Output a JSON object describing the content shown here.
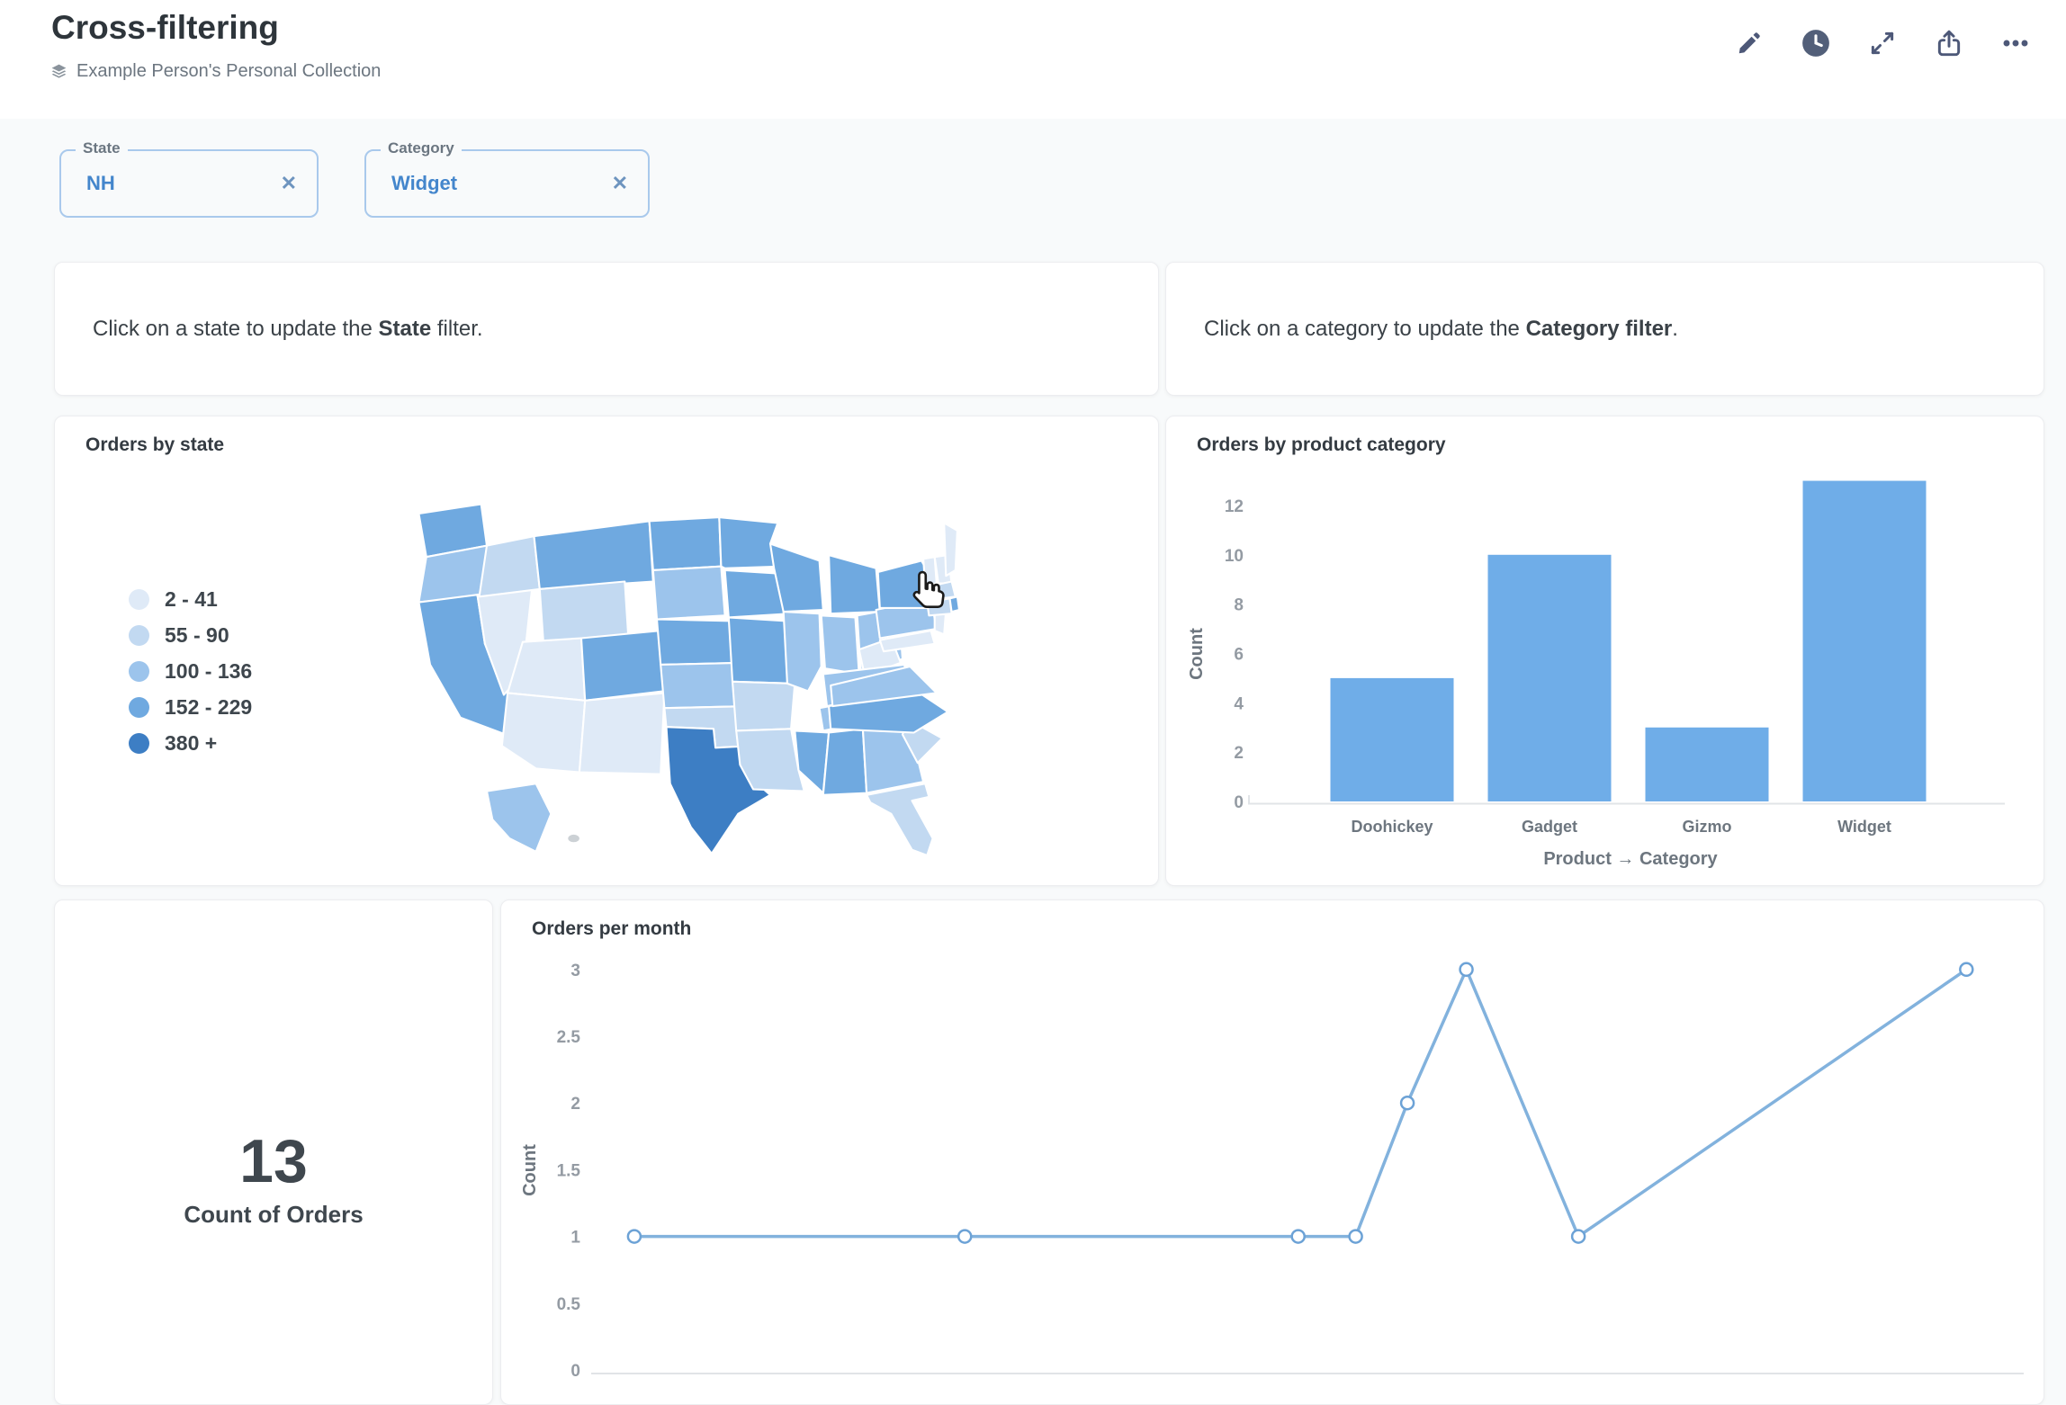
{
  "header": {
    "title": "Cross-filtering",
    "collection": "Example Person's Personal Collection",
    "action_icons": [
      "pencil-icon",
      "clock-icon",
      "fullscreen-icon",
      "share-icon",
      "ellipsis-icon"
    ]
  },
  "filters": [
    {
      "label": "State",
      "value": "NH",
      "clear_icon": "✕"
    },
    {
      "label": "Category",
      "value": "Widget",
      "clear_icon": "✕"
    }
  ],
  "text_cards": [
    {
      "prefix": "Click on a state to update the ",
      "bold": "State",
      "suffix": " filter."
    },
    {
      "prefix": "Click on a category to update the ",
      "bold": "Category filter",
      "suffix": "."
    }
  ],
  "colors": {
    "accent": "#4486cc",
    "bar_fill": "#6fade8",
    "line_stroke": "#82b2dd",
    "marker_stroke": "#6ca2d6",
    "axis_line": "#e1e4e7",
    "tick_text": "#949ba3",
    "axis_label_text": "#6d767f",
    "chip_border": "#a9c9ec",
    "no_data_state": "#ccd1d5"
  },
  "chart_data": [
    {
      "type": "choropleth",
      "title": "Orders by state",
      "legend_position": "left",
      "bins": [
        {
          "label": "2 - 41",
          "color": "#dfeaf7"
        },
        {
          "label": "55 - 90",
          "color": "#c2d9f1"
        },
        {
          "label": "100 - 136",
          "color": "#9cc4ec"
        },
        {
          "label": "152 - 229",
          "color": "#6fa9e0"
        },
        {
          "label": "380 +",
          "color": "#3d7ec4"
        }
      ],
      "state_bins": {
        "WA": 3,
        "OR": 2,
        "CA": 3,
        "NV": 0,
        "ID": 1,
        "MT": 3,
        "WY": 1,
        "UT": 0,
        "AZ": 0,
        "CO": 3,
        "NM": 0,
        "ND": 3,
        "SD": 2,
        "NE": 3,
        "KS": 2,
        "OK": 1,
        "TX": 4,
        "MN": 3,
        "IA": 3,
        "MO": 3,
        "AR": 1,
        "LA": 1,
        "WI": 3,
        "MI": 3,
        "IL": 2,
        "IN": 2,
        "OH": 2,
        "KY": 2,
        "TN": 2,
        "MS": 3,
        "AL": 3,
        "GA": 2,
        "FL": 1,
        "SC": 1,
        "NC": 3,
        "VA": 2,
        "WV": 0,
        "PA": 2,
        "NY": 3,
        "NJ": 0,
        "MD": 0,
        "VT": 0,
        "NH": 0,
        "ME": 0,
        "MA": 1,
        "CT": 1,
        "RI": 3,
        "AK": 2
      }
    },
    {
      "type": "bar",
      "title": "Orders by product category",
      "categories": [
        "Doohickey",
        "Gadget",
        "Gizmo",
        "Widget"
      ],
      "values": [
        5,
        10,
        3,
        13
      ],
      "xlabel": "Product → Category",
      "ylabel": "Count",
      "yticks": [
        12,
        10,
        8,
        6,
        4,
        2,
        0
      ],
      "ylim": [
        0,
        13
      ]
    },
    {
      "type": "scalar",
      "value": "13",
      "label": "Count of Orders"
    },
    {
      "type": "line",
      "title": "Orders per month",
      "ylabel": "Count",
      "yticks": [
        3,
        2.5,
        2,
        1.5,
        1,
        0.5,
        0
      ],
      "ylim": [
        0,
        3
      ],
      "points": [
        {
          "x_frac": 0.035,
          "y": 1
        },
        {
          "x_frac": 0.265,
          "y": 1
        },
        {
          "x_frac": 0.497,
          "y": 1
        },
        {
          "x_frac": 0.537,
          "y": 1
        },
        {
          "x_frac": 0.573,
          "y": 2
        },
        {
          "x_frac": 0.614,
          "y": 3
        },
        {
          "x_frac": 0.692,
          "y": 1
        },
        {
          "x_frac": 0.962,
          "y": 3
        }
      ]
    }
  ]
}
